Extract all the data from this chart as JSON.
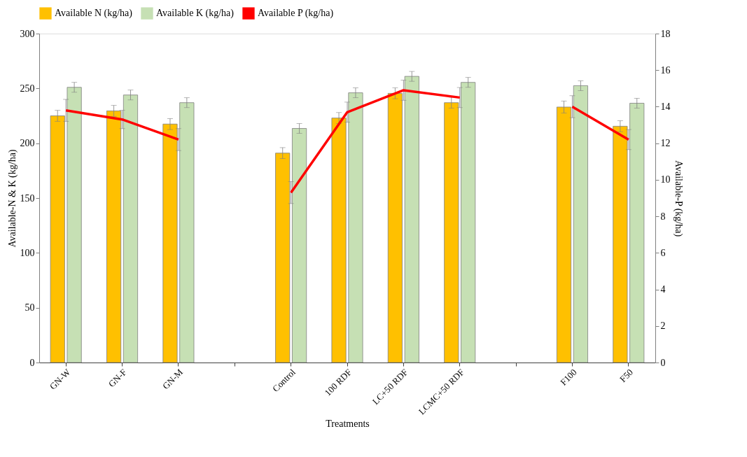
{
  "chart_data": {
    "type": "bar",
    "xlabel": "Treatments",
    "ylabel": "Available-N & K (kg/ha)",
    "y2label": "Available-P (kg/ha)",
    "categories": [
      "GN-W",
      "GN-F",
      "GN-M",
      null,
      "Control",
      "100 RDF",
      "LC+50 RDF",
      "LCMC+50 RDF",
      null,
      "F100",
      "F50"
    ],
    "series": [
      {
        "name": "Available N (kg/ha)",
        "type": "bar",
        "color": "#ffc000",
        "values": [
          225,
          229.5,
          217.5,
          null,
          191,
          223,
          245.5,
          237,
          null,
          233,
          215.5
        ],
        "errors": [
          5,
          5,
          5,
          null,
          5,
          5,
          5,
          5,
          null,
          5.5,
          5
        ]
      },
      {
        "name": "Available K (kg/ha)",
        "type": "bar",
        "color": "#c6e0b4",
        "values": [
          251,
          244,
          237,
          null,
          213.5,
          246,
          261,
          255.5,
          null,
          252.5,
          236.5
        ],
        "errors": [
          4.5,
          4.5,
          4.5,
          null,
          4.5,
          4.5,
          4.5,
          4.5,
          null,
          4.5,
          4.5
        ]
      },
      {
        "name": "Available P (kg/ha)",
        "type": "line",
        "axis": "y2",
        "color": "#ff0000",
        "values": [
          13.8,
          13.3,
          12.2,
          null,
          9.3,
          13.7,
          14.9,
          14.5,
          null,
          14,
          12.2
        ],
        "errors": [
          0.6,
          0.5,
          0.6,
          null,
          0.6,
          0.55,
          0.55,
          0.55,
          null,
          0.6,
          0.55
        ]
      }
    ],
    "ylim": [
      0,
      300
    ],
    "yticks": [
      0,
      50,
      100,
      150,
      200,
      250,
      300
    ],
    "y2lim": [
      0,
      18
    ],
    "y2ticks": [
      0,
      2,
      4,
      6,
      8,
      10,
      12,
      14,
      16,
      18
    ],
    "legend": "top",
    "grid": false
  }
}
